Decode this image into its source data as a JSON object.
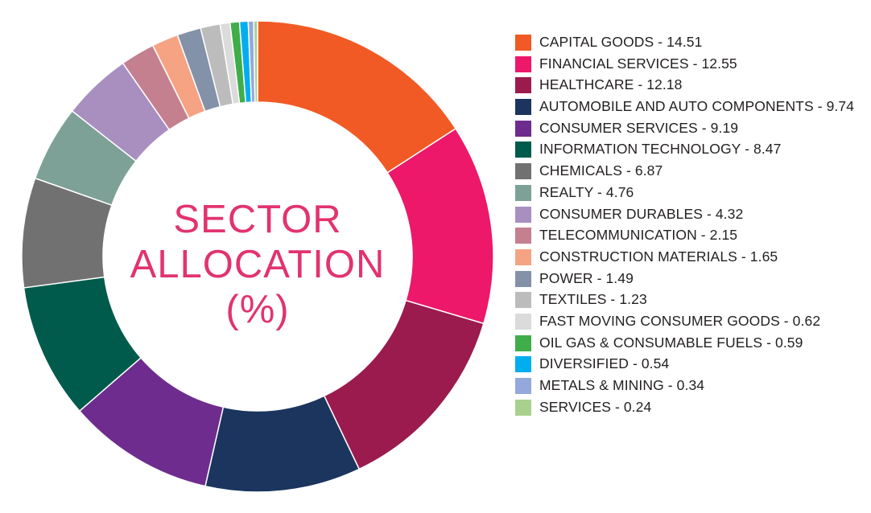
{
  "chart_data": {
    "type": "pie",
    "title": "SECTOR ALLOCATION (%)",
    "title_lines": [
      "SECTOR",
      "ALLOCATION",
      "(%)"
    ],
    "categories": [
      "CAPITAL GOODS",
      "FINANCIAL SERVICES",
      "HEALTHCARE",
      "AUTOMOBILE AND AUTO COMPONENTS",
      "CONSUMER SERVICES",
      "INFORMATION TECHNOLOGY",
      "CHEMICALS",
      "REALTY",
      "CONSUMER DURABLES",
      "TELECOMMUNICATION",
      "CONSTRUCTION MATERIALS",
      "POWER",
      "TEXTILES",
      "FAST MOVING CONSUMER GOODS",
      "OIL GAS & CONSUMABLE FUELS",
      "DIVERSIFIED",
      "METALS & MINING",
      "SERVICES"
    ],
    "values": [
      14.51,
      12.55,
      12.18,
      9.74,
      9.19,
      8.47,
      6.87,
      4.76,
      4.32,
      2.15,
      1.65,
      1.49,
      1.23,
      0.62,
      0.59,
      0.54,
      0.34,
      0.24
    ],
    "colors": [
      "#f15a24",
      "#ed1869",
      "#9b1b4e",
      "#1b355e",
      "#6e2c8e",
      "#005b4c",
      "#717171",
      "#7da197",
      "#a98fc0",
      "#c4808f",
      "#f6a383",
      "#8392a9",
      "#bcbcbc",
      "#dbdbdb",
      "#3fae49",
      "#00aeef",
      "#94a8dd",
      "#a9d18e"
    ],
    "legend": {
      "placement": "right",
      "labels": [
        "CAPITAL GOODS - 14.51",
        "FINANCIAL SERVICES - 12.55",
        "HEALTHCARE - 12.18",
        "AUTOMOBILE AND AUTO COMPONENTS - 9.74",
        "CONSUMER SERVICES - 9.19",
        "INFORMATION TECHNOLOGY - 8.47",
        "CHEMICALS - 6.87",
        "REALTY - 4.76",
        "CONSUMER DURABLES - 4.32",
        "TELECOMMUNICATION - 2.15",
        "CONSTRUCTION MATERIALS - 1.65",
        "POWER - 1.49",
        "TEXTILES - 1.23",
        "FAST MOVING CONSUMER GOODS - 0.62",
        "OIL GAS & CONSUMABLE FUELS - 0.59",
        "DIVERSIFIED - 0.54",
        "METALS & MINING - 0.34",
        "SERVICES - 0.24"
      ]
    }
  }
}
